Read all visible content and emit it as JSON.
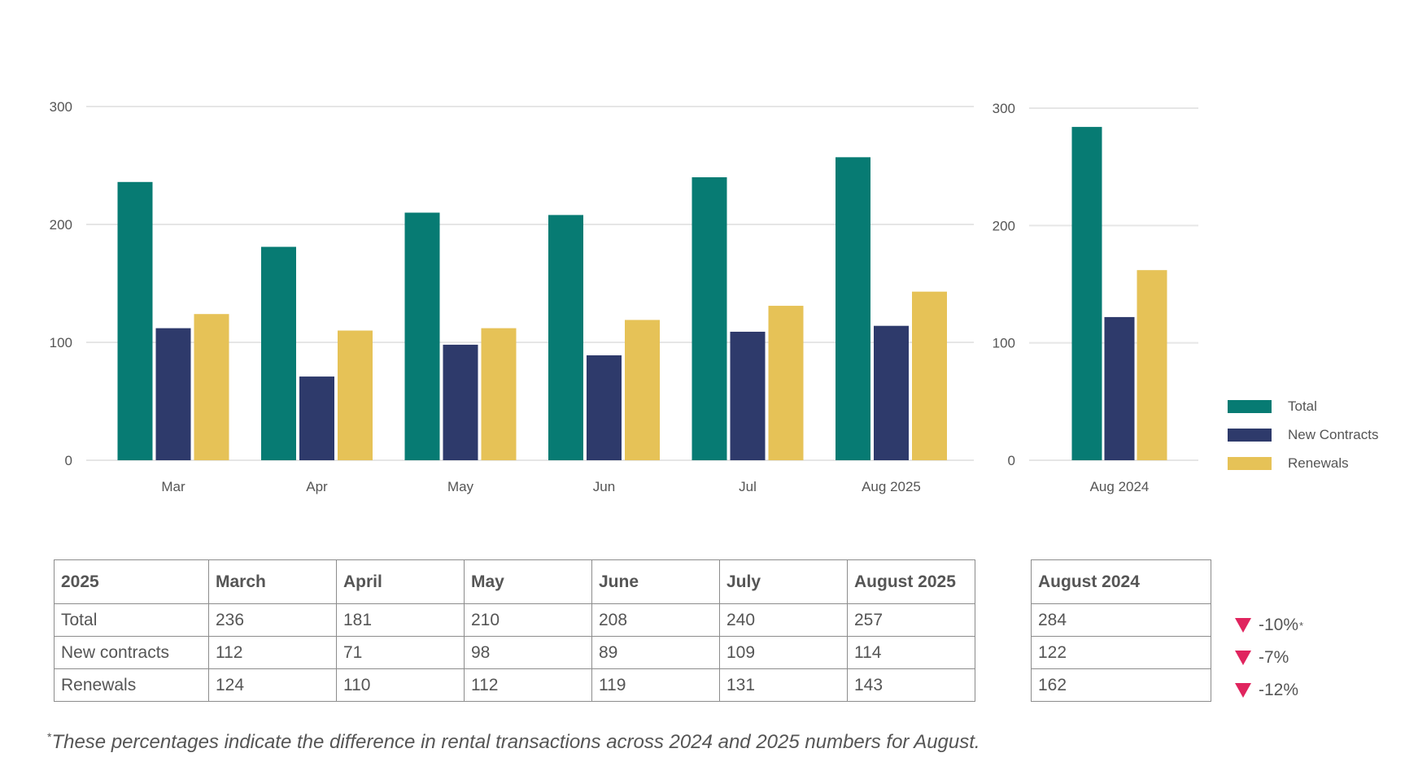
{
  "chart_data": [
    {
      "type": "bar",
      "categories": [
        "Mar",
        "Apr",
        "May",
        "Jun",
        "Jul",
        "Aug 2025"
      ],
      "series": [
        {
          "name": "Total",
          "values": [
            236,
            181,
            210,
            208,
            240,
            257
          ]
        },
        {
          "name": "New Contracts",
          "values": [
            112,
            71,
            98,
            89,
            109,
            114
          ]
        },
        {
          "name": "Renewals",
          "values": [
            124,
            110,
            112,
            119,
            131,
            143
          ]
        }
      ],
      "ylim": [
        0,
        300
      ],
      "yticks": [
        "0",
        "100",
        "200",
        "300"
      ],
      "grid": true
    },
    {
      "type": "bar",
      "categories": [
        "Aug 2024"
      ],
      "series": [
        {
          "name": "Total",
          "values": [
            284
          ]
        },
        {
          "name": "New Contracts",
          "values": [
            122
          ]
        },
        {
          "name": "Renewals",
          "values": [
            162
          ]
        }
      ],
      "ylim": [
        0,
        300
      ],
      "yticks": [
        "0",
        "100",
        "200",
        "300"
      ],
      "grid": true,
      "legend": "right"
    }
  ],
  "colors": {
    "total": "#077b73",
    "new_contracts": "#2e3a6b",
    "renewals": "#e6c257",
    "decline": "#e0245e"
  },
  "legend": [
    {
      "label": "Total",
      "color": "#077b73"
    },
    {
      "label": "New Contracts",
      "color": "#2e3a6b"
    },
    {
      "label": "Renewals",
      "color": "#e6c257"
    }
  ],
  "table_2025": {
    "headers": [
      "2025",
      "March",
      "April",
      "May",
      "June",
      "July",
      "August 2025"
    ],
    "rows": [
      [
        "Total",
        "236",
        "181",
        "210",
        "208",
        "240",
        "257"
      ],
      [
        "New contracts",
        "112",
        "71",
        "98",
        "89",
        "109",
        "114"
      ],
      [
        "Renewals",
        "124",
        "110",
        "112",
        "119",
        "131",
        "143"
      ]
    ]
  },
  "table_2024": {
    "header": "August 2024",
    "rows": [
      "284",
      "122",
      "162"
    ]
  },
  "changes": [
    "-10%",
    "-7%",
    "-12%"
  ],
  "change_marker": "*",
  "footnote": {
    "marker": "*",
    "text": "These percentages indicate the difference in rental transactions across 2024 and 2025 numbers for August."
  }
}
